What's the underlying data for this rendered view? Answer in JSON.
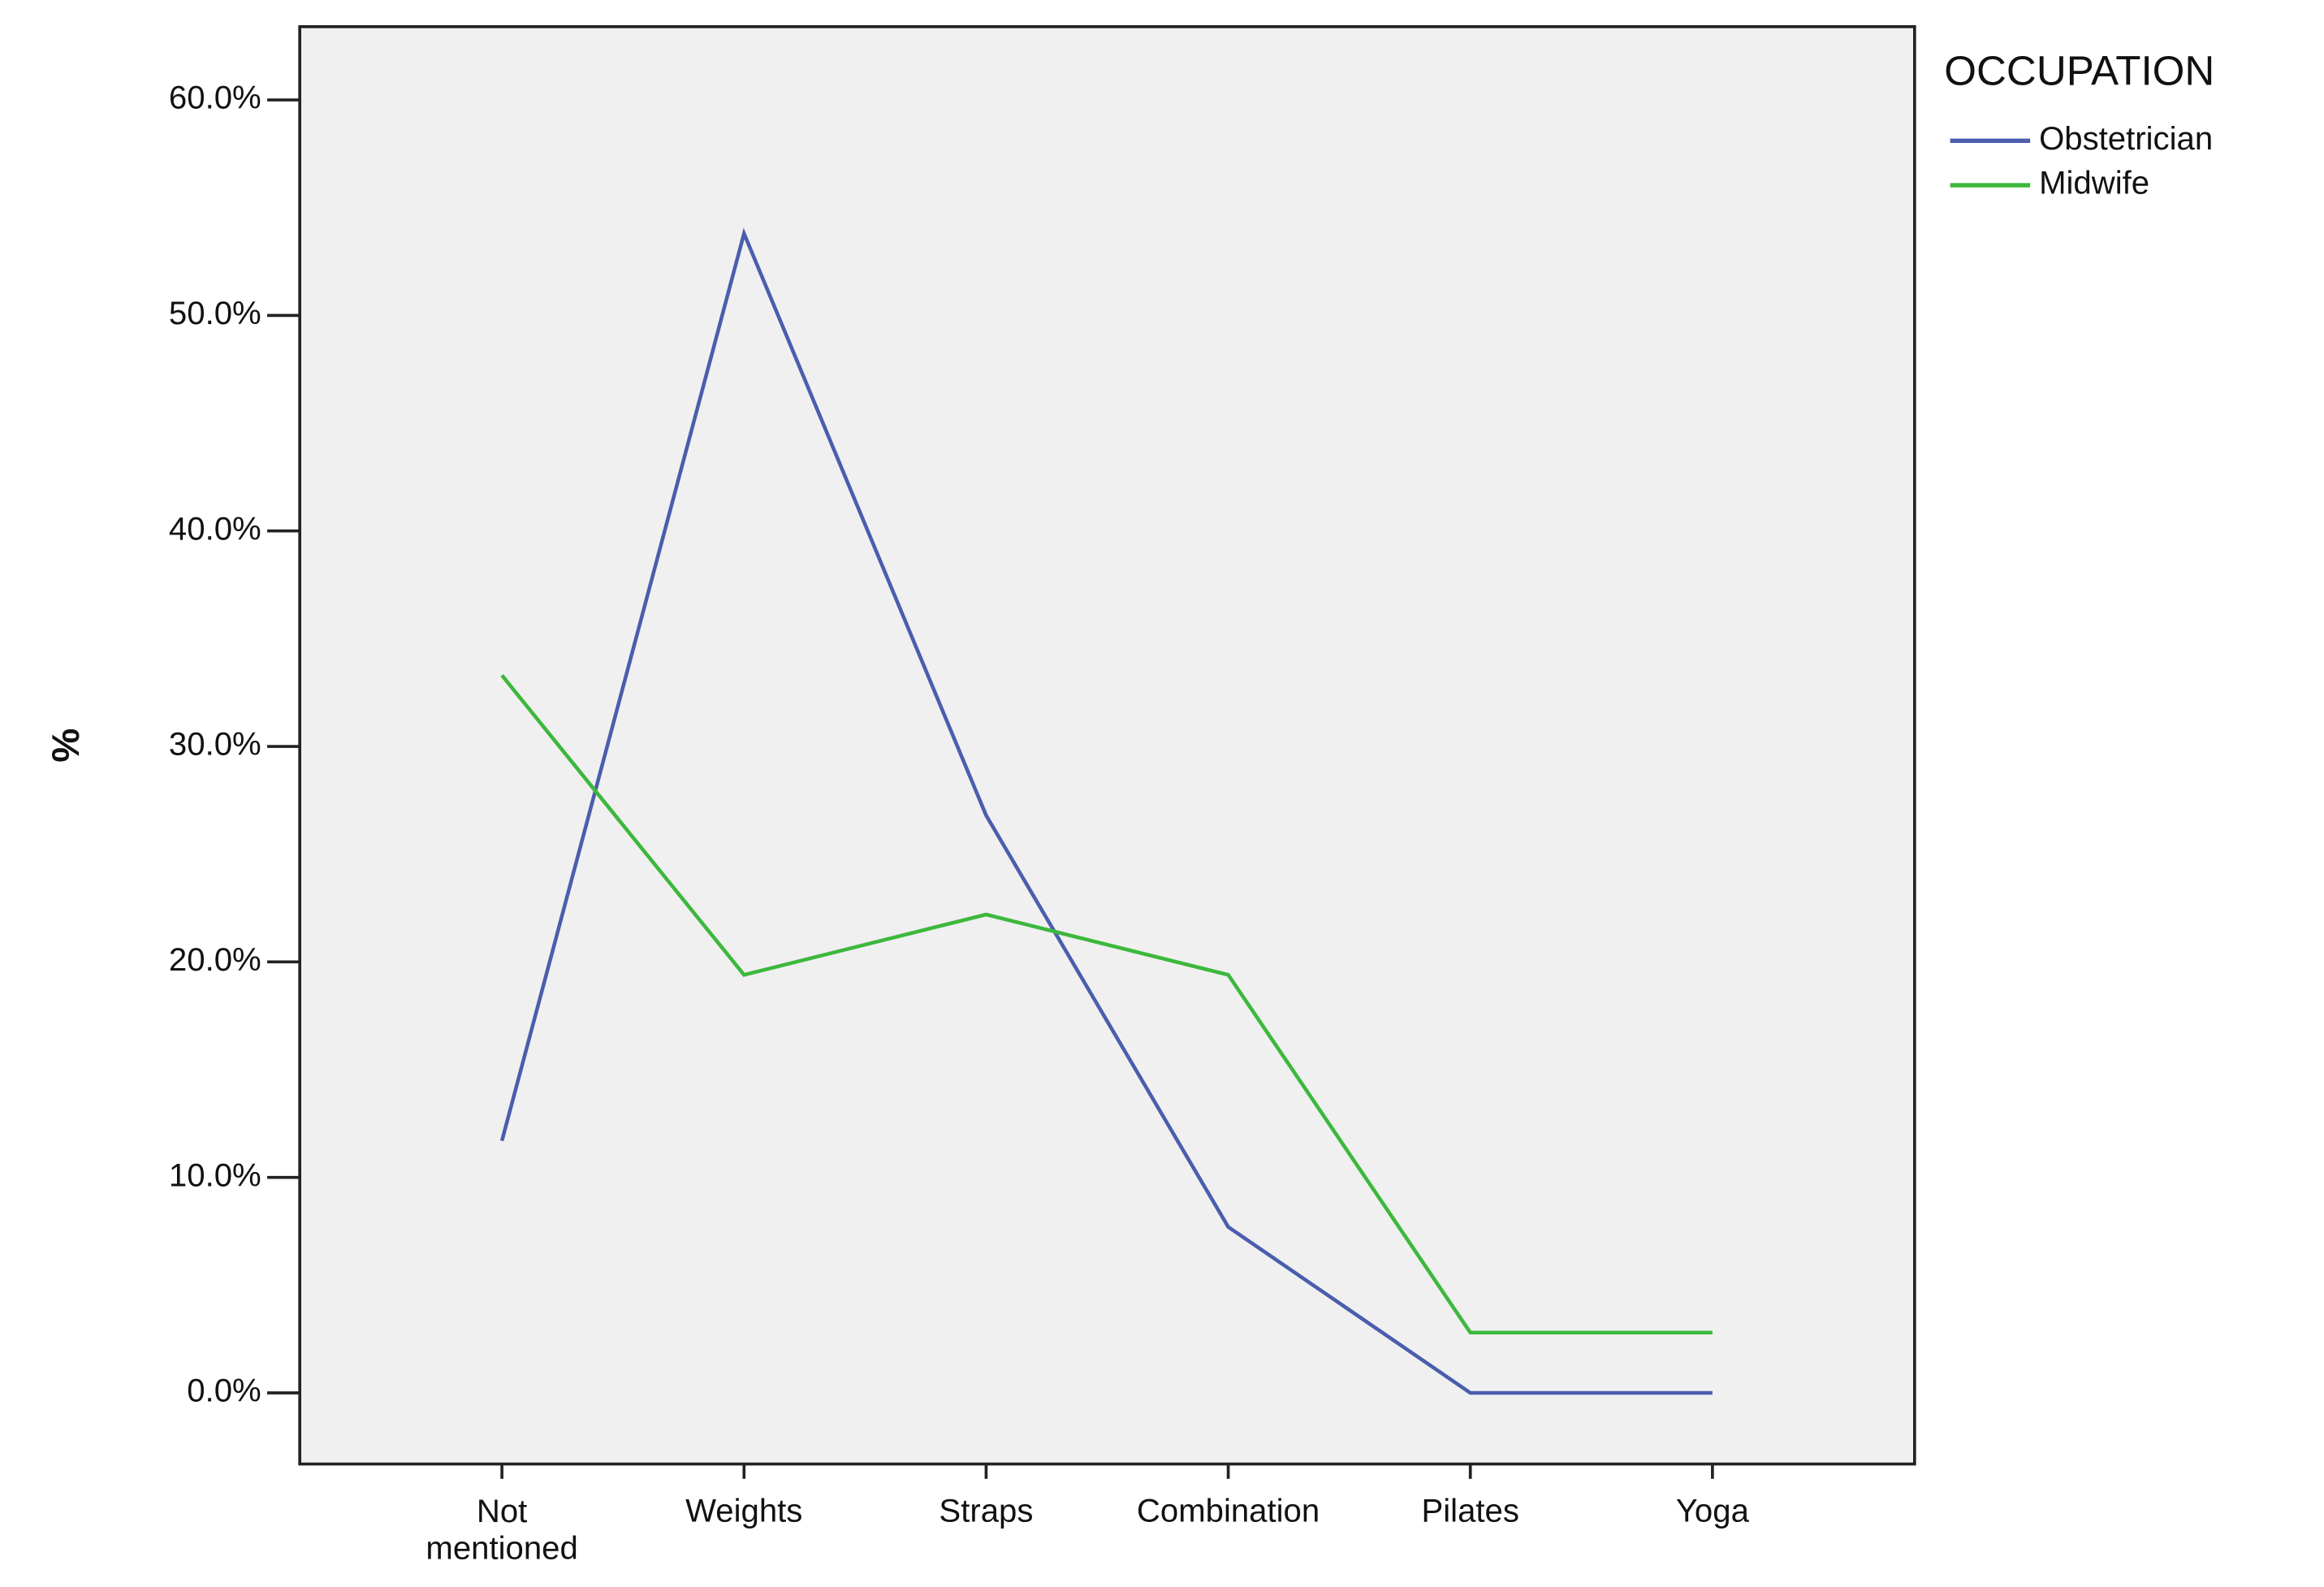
{
  "chart_data": {
    "type": "line",
    "y_label": "%",
    "legend_title": "OCCUPATION",
    "categories": [
      "Not mentioned",
      "Weights",
      "Straps",
      "Combination",
      "Pilates",
      "Yoga"
    ],
    "series": [
      {
        "name": "Obstetrician",
        "color": "#4a5ead",
        "values": [
          11.7,
          53.8,
          26.8,
          7.7,
          0,
          0
        ]
      },
      {
        "name": "Midwife",
        "color": "#3cb83c",
        "values": [
          33.3,
          19.4,
          22.2,
          19.4,
          2.8,
          2.8
        ]
      }
    ],
    "ylim": [
      -3.3,
      63.4
    ],
    "yticks": [
      {
        "value": 0,
        "label": "0.0%"
      },
      {
        "value": 10,
        "label": "10.0%"
      },
      {
        "value": 20,
        "label": "20.0%"
      },
      {
        "value": 30,
        "label": "30.0%"
      },
      {
        "value": 40,
        "label": "40.0%"
      },
      {
        "value": 50,
        "label": "50.0%"
      },
      {
        "value": 60,
        "label": "60.0%"
      }
    ],
    "grid": false,
    "legend_position": "top-right"
  }
}
